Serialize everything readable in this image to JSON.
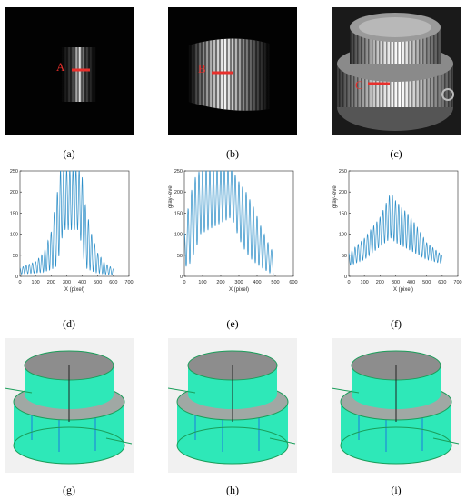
{
  "figure": {
    "row1": [
      {
        "caption": "(a)",
        "marker_label": "A"
      },
      {
        "caption": "(b)",
        "marker_label": "B"
      },
      {
        "caption": "(c)",
        "marker_label": "C"
      }
    ],
    "row2_captions": [
      "(d)",
      "(e)",
      "(f)"
    ],
    "row3_captions": [
      "(g)",
      "(h)",
      "(i)"
    ],
    "marker_color": "#e8302c",
    "line_color": "#2c8ec8",
    "mesh_color": "#2ee8b8",
    "cap_color": "#8d8d8d"
  },
  "chart_data": [
    {
      "type": "line",
      "title": "",
      "xlabel": "X (pixel)",
      "ylabel": "",
      "xlim": [
        0,
        700
      ],
      "ylim": [
        0,
        250
      ],
      "xticks": [
        0,
        100,
        200,
        300,
        400,
        500,
        600,
        700
      ],
      "yticks": [
        0,
        50,
        100,
        150,
        200,
        250
      ],
      "fringe_period": 20,
      "x": [
        0,
        100,
        150,
        200,
        240,
        260,
        280,
        380,
        400,
        420,
        460,
        500,
        550,
        600
      ],
      "envelope_max": [
        20,
        35,
        55,
        105,
        200,
        255,
        255,
        255,
        235,
        170,
        100,
        55,
        30,
        18
      ],
      "envelope_min": [
        5,
        8,
        10,
        15,
        25,
        70,
        110,
        110,
        60,
        20,
        12,
        8,
        5,
        4
      ]
    },
    {
      "type": "line",
      "title": "",
      "xlabel": "X (pixel)",
      "ylabel": "gray-level",
      "xlim": [
        0,
        600
      ],
      "ylim": [
        0,
        250
      ],
      "xticks": [
        0,
        100,
        200,
        300,
        400,
        500,
        600
      ],
      "yticks": [
        0,
        50,
        100,
        150,
        200,
        250
      ],
      "fringe_period": 20,
      "x": [
        0,
        30,
        60,
        90,
        260,
        300,
        340,
        380,
        420,
        460,
        490
      ],
      "envelope_max": [
        100,
        190,
        235,
        255,
        255,
        225,
        200,
        165,
        120,
        80,
        55
      ],
      "envelope_min": [
        20,
        30,
        60,
        100,
        140,
        90,
        55,
        35,
        22,
        10,
        5
      ]
    },
    {
      "type": "line",
      "title": "",
      "xlabel": "X (pixel)",
      "ylabel": "gray-level",
      "xlim": [
        0,
        700
      ],
      "ylim": [
        0,
        250
      ],
      "xticks": [
        0,
        100,
        200,
        300,
        400,
        500,
        600,
        700
      ],
      "yticks": [
        0,
        50,
        100,
        150,
        200,
        250
      ],
      "fringe_period": 20,
      "x": [
        0,
        100,
        200,
        270,
        300,
        400,
        500,
        600
      ],
      "envelope_max": [
        55,
        90,
        140,
        200,
        180,
        140,
        80,
        50
      ],
      "envelope_min": [
        25,
        40,
        70,
        90,
        80,
        60,
        40,
        30
      ]
    }
  ]
}
